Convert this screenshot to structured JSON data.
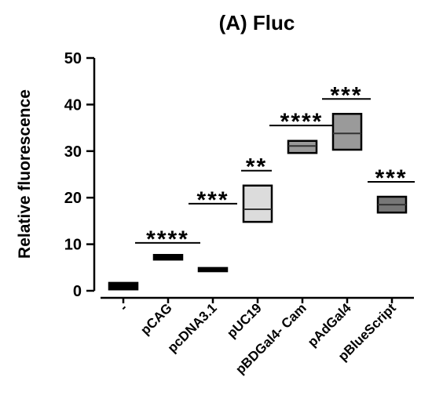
{
  "chart_data": {
    "type": "floating-bar",
    "title": "(A) Fluc",
    "y_label": "Relative fluorescence",
    "categories": [
      "-",
      "pCAG",
      "pcDNA3.1",
      "pUC19",
      "pBDGal4- Cam",
      "pAdGal4",
      "pBlueScript"
    ],
    "low": [
      0.3,
      6.7,
      4.2,
      14.8,
      29.6,
      30.3,
      16.8
    ],
    "high": [
      1.7,
      7.7,
      4.9,
      22.6,
      32.2,
      38.0,
      20.2
    ],
    "mean": [
      1.0,
      7.2,
      4.5,
      17.5,
      31.1,
      33.8,
      18.5
    ],
    "colors": [
      "#000000",
      "#000000",
      "#000000",
      "#dcdcdc",
      "#9a9a9a",
      "#9a9a9a",
      "#777777"
    ],
    "ylim": [
      0,
      50
    ],
    "yticks": [
      0,
      10,
      20,
      30,
      40,
      50
    ],
    "annotations": [
      {
        "text": "****",
        "y": 10.3
      },
      {
        "text": "***",
        "y": 18.7
      },
      {
        "text": "**",
        "y": 25.8
      },
      {
        "text": "****",
        "y": 35.5
      },
      {
        "text": "***",
        "y": 41.2
      },
      {
        "text": "***",
        "y": 23.4
      }
    ]
  }
}
